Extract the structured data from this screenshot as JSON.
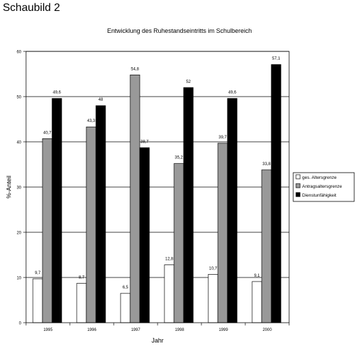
{
  "figure_label": "Schaubild 2",
  "chart_data": {
    "type": "bar",
    "title": "Entwicklung des Ruhestandseintritts im Schulbereich",
    "xlabel": "Jahr",
    "ylabel": "%-Anteil",
    "categories": [
      "1995",
      "1996",
      "1997",
      "1998",
      "1999",
      "2000"
    ],
    "series": [
      {
        "name": "ges. Altersgrenze",
        "values": [
          9.7,
          8.7,
          6.5,
          12.8,
          10.7,
          9.1
        ],
        "labels": [
          "9,7",
          "8,7",
          "6,5",
          "12,8",
          "10,7",
          "9,1"
        ],
        "color": "#ffffff"
      },
      {
        "name": "Antragsaltersgrenze",
        "values": [
          40.7,
          43.3,
          54.8,
          35.2,
          39.7,
          33.8
        ],
        "labels": [
          "40,7",
          "43,3",
          "54,8",
          "35,2",
          "39,7",
          "33,8"
        ],
        "color": "#999999"
      },
      {
        "name": "Dienstunfähigkeit",
        "values": [
          49.6,
          48,
          38.7,
          52,
          49.6,
          57.1
        ],
        "labels": [
          "49,6",
          "48",
          "38,7",
          "52",
          "49,6",
          "57,1"
        ],
        "color": "#000000"
      }
    ],
    "yticks": [
      "0",
      "10",
      "20",
      "30",
      "40",
      "50",
      "60"
    ],
    "ylim": [
      0,
      60
    ],
    "grid": true,
    "legend_position": "right"
  }
}
